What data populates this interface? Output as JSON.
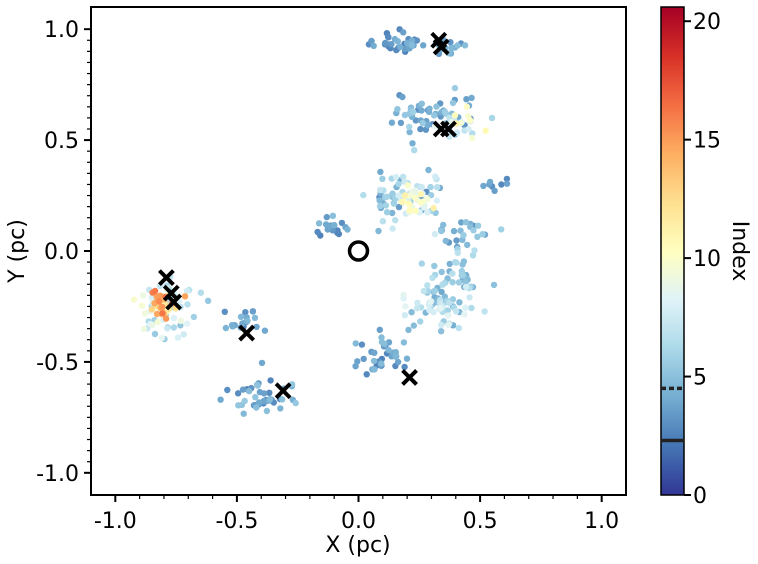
{
  "chart_data": {
    "type": "scatter",
    "title": "",
    "xlabel": "X (pc)",
    "ylabel": "Y (pc)",
    "xlim": [
      -1.1,
      1.1
    ],
    "ylim": [
      -1.1,
      1.1
    ],
    "x_ticks": [
      -1.0,
      -0.5,
      0.0,
      0.5,
      1.0
    ],
    "x_tick_labels": [
      "-1.0",
      "-0.5",
      "0.0",
      "0.5",
      "1.0"
    ],
    "y_ticks": [
      -1.0,
      -0.5,
      0.0,
      0.5,
      1.0
    ],
    "y_tick_labels": [
      "-1.0",
      "-0.5",
      "0.0",
      "0.5",
      "1.0"
    ],
    "grid": false,
    "colormap": "RdYlBu_r",
    "colorbar": {
      "label": "Index",
      "range": [
        0,
        20.6
      ],
      "ticks": [
        0,
        5,
        10,
        15,
        20
      ],
      "tick_labels": [
        "0",
        "5",
        "10",
        "15",
        "20"
      ],
      "markers": [
        {
          "style": "dashed",
          "value": 4.5
        },
        {
          "style": "solid",
          "value": 2.3
        }
      ]
    },
    "center_marker": {
      "shape": "open-circle",
      "x": 0.0,
      "y": 0.0
    },
    "cross_markers": [
      {
        "x": 0.33,
        "y": 0.95
      },
      {
        "x": 0.34,
        "y": 0.92
      },
      {
        "x": 0.34,
        "y": 0.55
      },
      {
        "x": 0.37,
        "y": 0.55
      },
      {
        "x": -0.79,
        "y": -0.12
      },
      {
        "x": -0.77,
        "y": -0.19
      },
      {
        "x": -0.76,
        "y": -0.23
      },
      {
        "x": -0.46,
        "y": -0.37
      },
      {
        "x": -0.31,
        "y": -0.63
      },
      {
        "x": 0.21,
        "y": -0.57
      }
    ],
    "clusters": [
      {
        "cx": 0.16,
        "cy": 0.94,
        "sx": 0.055,
        "sy": 0.025,
        "n": 35,
        "index": [
          2.5,
          4.5
        ]
      },
      {
        "cx": 0.36,
        "cy": 0.92,
        "sx": 0.04,
        "sy": 0.02,
        "n": 20,
        "index": [
          3.0,
          5.0
        ]
      },
      {
        "cx": 0.28,
        "cy": 0.62,
        "sx": 0.09,
        "sy": 0.045,
        "n": 55,
        "index": [
          3.0,
          6.0
        ]
      },
      {
        "cx": 0.42,
        "cy": 0.58,
        "sx": 0.04,
        "sy": 0.025,
        "n": 25,
        "index": [
          6.0,
          11.5
        ]
      },
      {
        "cx": 0.2,
        "cy": 0.25,
        "sx": 0.08,
        "sy": 0.07,
        "n": 70,
        "index": [
          3.0,
          8.0
        ]
      },
      {
        "cx": 0.24,
        "cy": 0.22,
        "sx": 0.035,
        "sy": 0.035,
        "n": 25,
        "index": [
          8.0,
          11.5
        ]
      },
      {
        "cx": 0.58,
        "cy": 0.3,
        "sx": 0.035,
        "sy": 0.012,
        "n": 8,
        "index": [
          2.5,
          4.0
        ]
      },
      {
        "cx": -0.12,
        "cy": 0.11,
        "sx": 0.05,
        "sy": 0.03,
        "n": 18,
        "index": [
          2.5,
          5.0
        ]
      },
      {
        "cx": 0.44,
        "cy": 0.08,
        "sx": 0.06,
        "sy": 0.04,
        "n": 25,
        "index": [
          3.0,
          6.0
        ]
      },
      {
        "cx": 0.4,
        "cy": -0.12,
        "sx": 0.06,
        "sy": 0.06,
        "n": 40,
        "index": [
          4.0,
          7.0
        ]
      },
      {
        "cx": 0.33,
        "cy": -0.25,
        "sx": 0.08,
        "sy": 0.06,
        "n": 60,
        "index": [
          4.0,
          8.5
        ]
      },
      {
        "cx": -0.8,
        "cy": -0.25,
        "sx": 0.06,
        "sy": 0.06,
        "n": 60,
        "index": [
          5.0,
          10.0
        ]
      },
      {
        "cx": -0.8,
        "cy": -0.24,
        "sx": 0.03,
        "sy": 0.035,
        "n": 30,
        "index": [
          11.0,
          16.5
        ]
      },
      {
        "cx": -0.47,
        "cy": -0.32,
        "sx": 0.04,
        "sy": 0.025,
        "n": 18,
        "index": [
          2.5,
          5.0
        ]
      },
      {
        "cx": 0.1,
        "cy": -0.48,
        "sx": 0.06,
        "sy": 0.05,
        "n": 35,
        "index": [
          2.5,
          5.0
        ]
      },
      {
        "cx": -0.38,
        "cy": -0.66,
        "sx": 0.07,
        "sy": 0.04,
        "n": 45,
        "index": [
          2.5,
          5.5
        ]
      }
    ]
  }
}
